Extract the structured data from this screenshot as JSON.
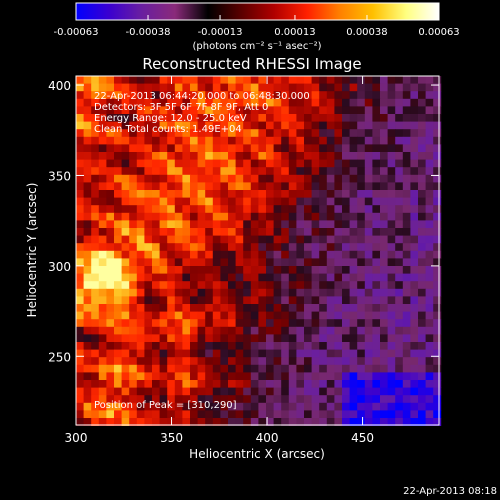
{
  "colorbar": {
    "ticks": [
      "-0.00063",
      "-0.00038",
      "-0.00013",
      "0.00013",
      "0.00038",
      "0.00063"
    ],
    "tick_values": [
      -0.00063,
      -0.00038,
      -0.00013,
      0.00013,
      0.00038,
      0.00063
    ],
    "range": [
      -0.00063,
      0.00063
    ],
    "unit_label": "(photons cm⁻² s⁻¹ asec⁻²)",
    "colors": [
      "#0000ff",
      "#3a00d0",
      "#6a1fa0",
      "#8a2a7a",
      "#000000",
      "#5a0000",
      "#b00000",
      "#ff2000",
      "#ff8000",
      "#ffc000",
      "#ffff80",
      "#ffffff"
    ]
  },
  "chart_data": {
    "type": "heatmap",
    "title": "Reconstructed RHESSI Image",
    "xlabel": "Heliocentric X (arcsec)",
    "ylabel": "Heliocentric Y (arcsec)",
    "xlim": [
      300,
      490
    ],
    "ylim": [
      212,
      405
    ],
    "x_ticks": [
      300,
      350,
      400,
      450
    ],
    "y_ticks": [
      250,
      300,
      350,
      400
    ],
    "annotations": [
      "22-Apr-2013 06:44:20.000 to 06:48:30.000",
      "Detectors: 3F 5F 6F 7F 8F 9F, Att 0",
      "Energy Range: 12.0 - 25.0 keV",
      "Clean    Total counts: 1.49E+04"
    ],
    "peak_label": "Position of Peak = [310,290]",
    "peak": [
      310,
      290
    ]
  },
  "footer": {
    "timestamp": "22-Apr-2013 08:18"
  }
}
